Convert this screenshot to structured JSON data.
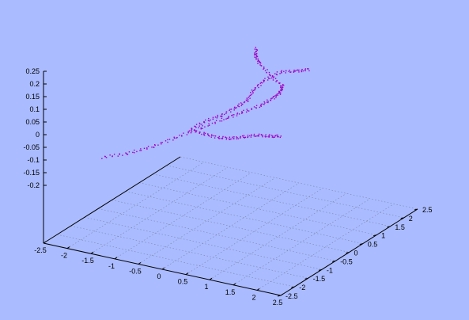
{
  "chart_data": {
    "type": "scatter",
    "title": "",
    "xlabel": "",
    "ylabel": "",
    "zlabel": "",
    "xlim": [
      -2.5,
      2.5
    ],
    "ylim": [
      -2.5,
      2.5
    ],
    "zlim": [
      -0.25,
      0.25
    ],
    "x_ticks": [
      "-2.5",
      "-2",
      "-1.5",
      "-1",
      "-0.5",
      "0",
      "0.5",
      "1",
      "1.5",
      "2",
      "2.5"
    ],
    "y_ticks": [
      "-2.5",
      "-2",
      "-1.5",
      "-1",
      "-0.5",
      "0",
      "0.5",
      "1",
      "1.5",
      "2",
      "2.5"
    ],
    "z_ticks": [
      "-0.2",
      "-0.15",
      "-0.1",
      "-0.05",
      "0",
      "0.05",
      "0.1",
      "0.15",
      "0.2",
      "0.25"
    ],
    "grid": true,
    "legend": "none",
    "point_color": "#a000c0",
    "background_color": "#aabbff",
    "series": [
      {
        "points": [
          [
            -1.8,
            -1.6,
            -0.12
          ],
          [
            -1.3,
            -1.5,
            -0.09
          ],
          [
            -0.9,
            -1.3,
            -0.06
          ],
          [
            -0.5,
            -1.1,
            -0.02
          ],
          [
            -0.1,
            -0.9,
            0.02
          ],
          [
            0.3,
            -0.7,
            0.06
          ],
          [
            0.6,
            -0.6,
            0.09
          ],
          [
            0.9,
            -0.5,
            0.12
          ],
          [
            1.1,
            -0.4,
            0.15
          ],
          [
            1.2,
            -0.3,
            0.17
          ],
          [
            1.2,
            -0.2,
            0.19
          ],
          [
            0.9,
            -0.1,
            0.21
          ],
          [
            0.6,
            0.0,
            0.24
          ],
          [
            0.4,
            0.2,
            0.25
          ],
          [
            0.3,
            0.4,
            0.26
          ]
        ]
      },
      {
        "points": [
          [
            -0.3,
            -1.0,
            0.01
          ],
          [
            -0.2,
            -0.6,
            0.02
          ],
          [
            -0.1,
            -0.2,
            0.02
          ],
          [
            0.0,
            0.2,
            0.03
          ],
          [
            0.0,
            0.6,
            0.03
          ],
          [
            -0.1,
            1.0,
            0.04
          ],
          [
            -0.1,
            1.4,
            0.05
          ],
          [
            0.0,
            1.8,
            0.06
          ],
          [
            0.1,
            2.2,
            0.04
          ],
          [
            0.2,
            2.5,
            0.03
          ]
        ]
      },
      {
        "points": [
          [
            -0.3,
            -1.0,
            0.01
          ],
          [
            -0.2,
            -0.6,
            -0.03
          ],
          [
            -0.1,
            -0.3,
            -0.06
          ],
          [
            0.0,
            0.0,
            -0.08
          ],
          [
            0.1,
            0.3,
            -0.09
          ],
          [
            0.2,
            0.6,
            -0.1
          ],
          [
            0.3,
            0.9,
            -0.12
          ],
          [
            0.4,
            1.1,
            -0.13
          ]
        ]
      }
    ]
  }
}
